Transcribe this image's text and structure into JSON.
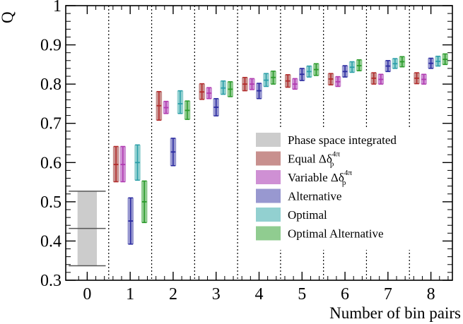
{
  "chart_data": {
    "type": "scatter",
    "xlabel": "Number of bin pairs",
    "ylabel": "Q",
    "xlim": [
      -0.5,
      8.5
    ],
    "ylim": [
      0.3,
      1.0
    ],
    "x_ticks": [
      "0",
      "1",
      "2",
      "3",
      "4",
      "5",
      "6",
      "7",
      "8"
    ],
    "y_ticks": [
      "0.3",
      "0.4",
      "0.5",
      "0.6",
      "0.7",
      "0.8",
      "0.9",
      "1"
    ],
    "grid": "vertical dotted separators between bin-pair groups",
    "legend_position": "lower-right",
    "legend": [
      {
        "label": "Phase space integrated",
        "color": "#cccccc"
      },
      {
        "label_main": "Equal Δδ",
        "label_sub": "p",
        "label_sup": "4π",
        "color": "#c8908e"
      },
      {
        "label_main": "Variable Δδ",
        "label_sub": "p",
        "label_sup": "4π",
        "color": "#cf90d4"
      },
      {
        "label": "Alternative",
        "color": "#9898d0"
      },
      {
        "label": "Optimal",
        "color": "#92d0d0"
      },
      {
        "label": "Optimal Alternative",
        "color": "#90cc90"
      }
    ],
    "phase_space_integrated": {
      "x": 0,
      "value": 0.432,
      "low": 0.337,
      "high": 0.527,
      "color": "#cccccc",
      "line_color": "#555555"
    },
    "series": [
      {
        "name": "Equal",
        "color": "#c8908e",
        "line_color": "#b22a2a",
        "points": [
          {
            "x": 1,
            "y": 0.595,
            "low": 0.551,
            "high": 0.641
          },
          {
            "x": 2,
            "y": 0.745,
            "low": 0.708,
            "high": 0.781
          },
          {
            "x": 3,
            "y": 0.78,
            "low": 0.761,
            "high": 0.801
          },
          {
            "x": 4,
            "y": 0.8,
            "low": 0.783,
            "high": 0.817
          },
          {
            "x": 5,
            "y": 0.808,
            "low": 0.792,
            "high": 0.824
          },
          {
            "x": 6,
            "y": 0.813,
            "low": 0.798,
            "high": 0.827
          },
          {
            "x": 7,
            "y": 0.815,
            "low": 0.8,
            "high": 0.829
          },
          {
            "x": 8,
            "y": 0.815,
            "low": 0.801,
            "high": 0.829
          }
        ]
      },
      {
        "name": "Variable",
        "color": "#cf90d4",
        "line_color": "#b03ab0",
        "points": [
          {
            "x": 1,
            "y": 0.595,
            "low": 0.551,
            "high": 0.641
          },
          {
            "x": 2,
            "y": 0.74,
            "low": 0.725,
            "high": 0.756
          },
          {
            "x": 3,
            "y": 0.777,
            "low": 0.763,
            "high": 0.791
          },
          {
            "x": 4,
            "y": 0.8,
            "low": 0.786,
            "high": 0.814
          },
          {
            "x": 5,
            "y": 0.8,
            "low": 0.787,
            "high": 0.814
          },
          {
            "x": 6,
            "y": 0.806,
            "low": 0.794,
            "high": 0.819
          },
          {
            "x": 7,
            "y": 0.812,
            "low": 0.8,
            "high": 0.825
          },
          {
            "x": 8,
            "y": 0.812,
            "low": 0.8,
            "high": 0.825
          }
        ]
      },
      {
        "name": "Alternative",
        "color": "#9898d0",
        "line_color": "#2a2aa0",
        "points": [
          {
            "x": 1,
            "y": 0.451,
            "low": 0.392,
            "high": 0.51
          },
          {
            "x": 2,
            "y": 0.627,
            "low": 0.592,
            "high": 0.662
          },
          {
            "x": 3,
            "y": 0.741,
            "low": 0.719,
            "high": 0.763
          },
          {
            "x": 4,
            "y": 0.783,
            "low": 0.763,
            "high": 0.802
          },
          {
            "x": 5,
            "y": 0.825,
            "low": 0.809,
            "high": 0.84
          },
          {
            "x": 6,
            "y": 0.832,
            "low": 0.818,
            "high": 0.847
          },
          {
            "x": 7,
            "y": 0.846,
            "low": 0.832,
            "high": 0.86
          },
          {
            "x": 8,
            "y": 0.853,
            "low": 0.84,
            "high": 0.866
          }
        ]
      },
      {
        "name": "Optimal",
        "color": "#92d0d0",
        "line_color": "#2a9ea8",
        "points": [
          {
            "x": 1,
            "y": 0.6,
            "low": 0.555,
            "high": 0.645
          },
          {
            "x": 2,
            "y": 0.75,
            "low": 0.725,
            "high": 0.783
          },
          {
            "x": 3,
            "y": 0.79,
            "low": 0.774,
            "high": 0.808
          },
          {
            "x": 4,
            "y": 0.81,
            "low": 0.794,
            "high": 0.827
          },
          {
            "x": 5,
            "y": 0.832,
            "low": 0.818,
            "high": 0.846
          },
          {
            "x": 6,
            "y": 0.843,
            "low": 0.83,
            "high": 0.857
          },
          {
            "x": 7,
            "y": 0.852,
            "low": 0.84,
            "high": 0.865
          },
          {
            "x": 8,
            "y": 0.858,
            "low": 0.846,
            "high": 0.871
          }
        ]
      },
      {
        "name": "Optimal Alternative",
        "color": "#90cc90",
        "line_color": "#2a9a2a",
        "points": [
          {
            "x": 1,
            "y": 0.5,
            "low": 0.447,
            "high": 0.553
          },
          {
            "x": 2,
            "y": 0.733,
            "low": 0.71,
            "high": 0.757
          },
          {
            "x": 3,
            "y": 0.787,
            "low": 0.768,
            "high": 0.806
          },
          {
            "x": 4,
            "y": 0.817,
            "low": 0.8,
            "high": 0.833
          },
          {
            "x": 5,
            "y": 0.837,
            "low": 0.822,
            "high": 0.852
          },
          {
            "x": 6,
            "y": 0.847,
            "low": 0.834,
            "high": 0.862
          },
          {
            "x": 7,
            "y": 0.857,
            "low": 0.844,
            "high": 0.87
          },
          {
            "x": 8,
            "y": 0.863,
            "low": 0.85,
            "high": 0.877
          }
        ]
      }
    ]
  }
}
